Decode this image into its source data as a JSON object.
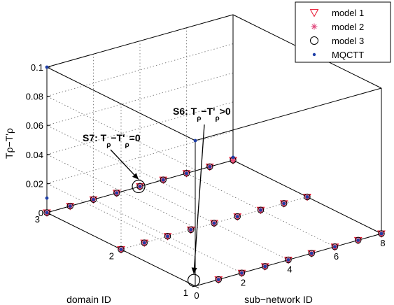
{
  "chart_data": {
    "type": "scatter",
    "projection": "3d",
    "xlabel": "sub−network ID",
    "ylabel": "domain ID",
    "zlabel": "Tρ−T'ρ",
    "xlim": [
      0,
      8
    ],
    "ylim": [
      1,
      3
    ],
    "zlim": [
      0,
      0.1
    ],
    "x_ticks": [
      "0",
      "2",
      "4",
      "6",
      "8"
    ],
    "y_ticks": [
      "1",
      "2",
      "3"
    ],
    "z_ticks": [
      "0",
      "0.02",
      "0.04",
      "0.06",
      "0.08",
      "0.1"
    ],
    "grid": true,
    "legend_position": "top-right",
    "series": [
      {
        "name": "model 1",
        "marker": "triangle-down",
        "color": "#e8112d",
        "points": [
          [
            0,
            3,
            0
          ],
          [
            1,
            3,
            0
          ],
          [
            2,
            3,
            0
          ],
          [
            3,
            3,
            0
          ],
          [
            4,
            3,
            0
          ],
          [
            5,
            3,
            0
          ],
          [
            6,
            3,
            0
          ],
          [
            7,
            3,
            0
          ],
          [
            8,
            3,
            0
          ],
          [
            0,
            2,
            0
          ],
          [
            1,
            2,
            0
          ],
          [
            2,
            2,
            0
          ],
          [
            3,
            2,
            0
          ],
          [
            4,
            2,
            0
          ],
          [
            5,
            2,
            0
          ],
          [
            6,
            2,
            0
          ],
          [
            7,
            2,
            0
          ],
          [
            8,
            2,
            0
          ],
          [
            1,
            1,
            0
          ],
          [
            2,
            1,
            0
          ],
          [
            3,
            1,
            0
          ],
          [
            4,
            1,
            0
          ],
          [
            5,
            1,
            0
          ],
          [
            6,
            1,
            0
          ],
          [
            7,
            1,
            0
          ],
          [
            8,
            1,
            0
          ]
        ]
      },
      {
        "name": "model 2",
        "marker": "asterisk",
        "color": "#e0467a",
        "points": [
          [
            0,
            3,
            0
          ],
          [
            1,
            3,
            0
          ],
          [
            2,
            3,
            0
          ],
          [
            3,
            3,
            0
          ],
          [
            4,
            3,
            0
          ],
          [
            5,
            3,
            0
          ],
          [
            6,
            3,
            0
          ],
          [
            7,
            3,
            0
          ],
          [
            8,
            3,
            0
          ],
          [
            0,
            2,
            0
          ],
          [
            1,
            2,
            0
          ],
          [
            2,
            2,
            0
          ],
          [
            3,
            2,
            0
          ],
          [
            4,
            2,
            0
          ],
          [
            5,
            2,
            0
          ],
          [
            6,
            2,
            0
          ],
          [
            7,
            2,
            0
          ],
          [
            8,
            2,
            0
          ],
          [
            1,
            1,
            0
          ],
          [
            2,
            1,
            0
          ],
          [
            3,
            1,
            0
          ],
          [
            4,
            1,
            0
          ],
          [
            5,
            1,
            0
          ],
          [
            6,
            1,
            0
          ],
          [
            7,
            1,
            0
          ],
          [
            8,
            1,
            0
          ]
        ]
      },
      {
        "name": "model 3",
        "marker": "circle",
        "color": "#000000",
        "points": [
          [
            0,
            3,
            0
          ],
          [
            1,
            3,
            0
          ],
          [
            2,
            3,
            0
          ],
          [
            3,
            3,
            0
          ],
          [
            4,
            3,
            0
          ],
          [
            5,
            3,
            0
          ],
          [
            6,
            3,
            0
          ],
          [
            7,
            3,
            0
          ],
          [
            8,
            3,
            0
          ],
          [
            0,
            2,
            0
          ],
          [
            1,
            2,
            0
          ],
          [
            2,
            2,
            0
          ],
          [
            3,
            2,
            0
          ],
          [
            4,
            2,
            0
          ],
          [
            5,
            2,
            0
          ],
          [
            6,
            2,
            0
          ],
          [
            7,
            2,
            0
          ],
          [
            8,
            2,
            0
          ],
          [
            1,
            1,
            0
          ],
          [
            2,
            1,
            0
          ],
          [
            3,
            1,
            0
          ],
          [
            4,
            1,
            0
          ],
          [
            5,
            1,
            0
          ],
          [
            6,
            1,
            0
          ],
          [
            7,
            1,
            0
          ],
          [
            8,
            1,
            0
          ]
        ]
      },
      {
        "name": "MQCTT",
        "marker": "dot",
        "color": "#1f3fa8",
        "points": [
          [
            0,
            3,
            0
          ],
          [
            1,
            3,
            0
          ],
          [
            2,
            3,
            0
          ],
          [
            3,
            3,
            0
          ],
          [
            4,
            3,
            0
          ],
          [
            5,
            3,
            0
          ],
          [
            6,
            3,
            0
          ],
          [
            7,
            3,
            0
          ],
          [
            8,
            3,
            0.002
          ],
          [
            0,
            2,
            0
          ],
          [
            1,
            2,
            0
          ],
          [
            2,
            2,
            0
          ],
          [
            3,
            2,
            0
          ],
          [
            4,
            2,
            0
          ],
          [
            5,
            2,
            0
          ],
          [
            6,
            2,
            0
          ],
          [
            7,
            2,
            0
          ],
          [
            8,
            2,
            0
          ],
          [
            1,
            1,
            0
          ],
          [
            2,
            1,
            0
          ],
          [
            3,
            1,
            0
          ],
          [
            4,
            1,
            0
          ],
          [
            5,
            1,
            0
          ],
          [
            6,
            1,
            0
          ],
          [
            7,
            1,
            0
          ],
          [
            8,
            1,
            0
          ],
          [
            0,
            1,
            0.1
          ],
          [
            0,
            3,
            0.1
          ],
          [
            0,
            3,
            0.01
          ]
        ]
      }
    ],
    "annotations": [
      {
        "label": "S6: T",
        "sub1": "ρ",
        "mid": "−T'",
        "sub2": "ρ",
        "suffix": ">0",
        "target": [
          0,
          1,
          0.004
        ]
      },
      {
        "label": "S7: T",
        "sub1": "ρ",
        "mid": "−T'",
        "sub2": "ρ",
        "suffix": "=0",
        "target": [
          4,
          3,
          0
        ]
      }
    ]
  }
}
